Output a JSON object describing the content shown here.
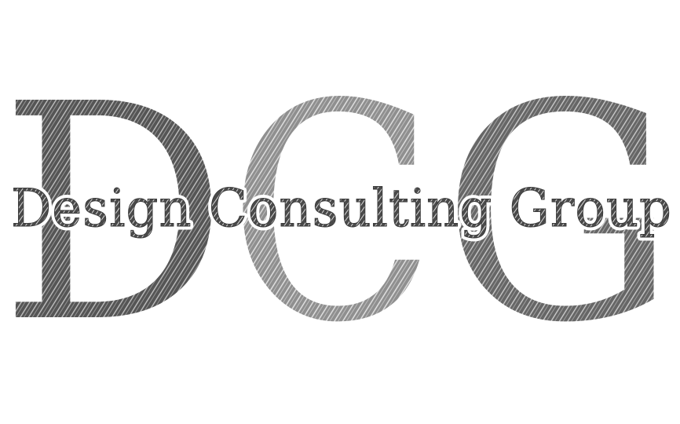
{
  "logo": {
    "monogram": {
      "letter_d": "D",
      "letter_c": "C",
      "letter_g": "G"
    },
    "tagline": "Design Consulting Group",
    "colors": {
      "background": "#ffffff",
      "letter_d": "#5a5a5a",
      "letter_c": "#9a9a9a",
      "letter_g": "#6e6e6e",
      "tagline_fill": "#6a6a6a",
      "tagline_outline": "#ffffff",
      "hatch_light": "#ffffff"
    }
  }
}
